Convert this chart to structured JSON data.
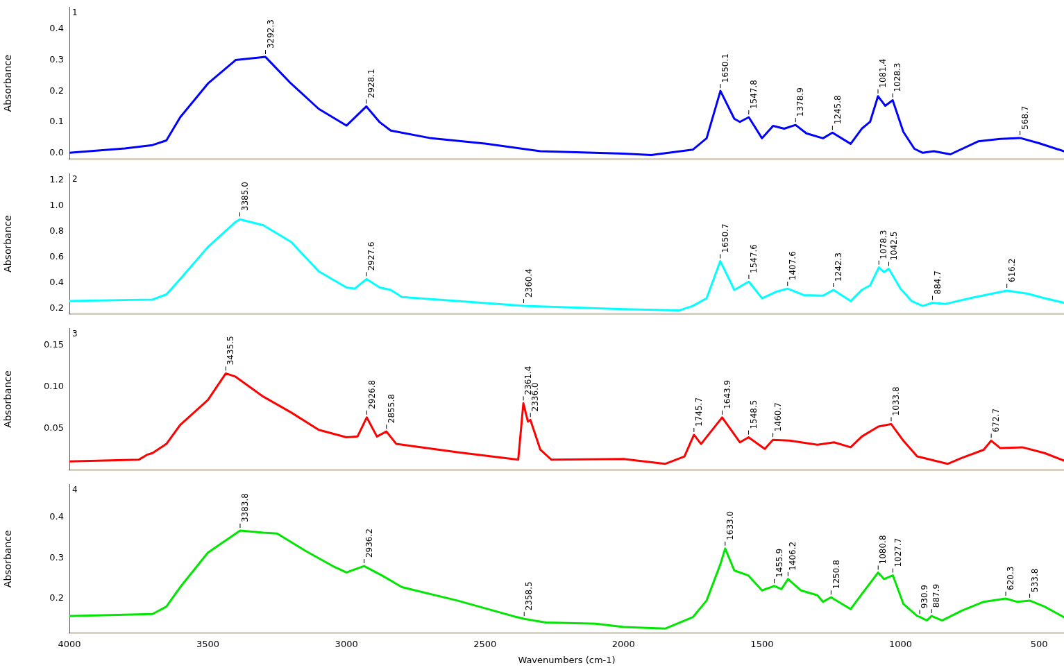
{
  "chart_data": [
    {
      "type": "line",
      "ylabel": "Absorbance",
      "annotations": [
        "1",
        {
          "text": "3292.3",
          "x": 3292.3,
          "y": 0.31
        },
        {
          "text": "2928.1",
          "x": 2928.1,
          "y": 0.15
        },
        {
          "text": "1650.1",
          "x": 1650.1,
          "y": 0.2
        },
        {
          "text": "1547.8",
          "x": 1547.8,
          "y": 0.115
        },
        {
          "text": "1378.9",
          "x": 1378.9,
          "y": 0.09
        },
        {
          "text": "1245.8",
          "x": 1245.8,
          "y": 0.065
        },
        {
          "text": "1081.4",
          "x": 1081.4,
          "y": 0.183
        },
        {
          "text": "1028.3",
          "x": 1028.3,
          "y": 0.17
        },
        {
          "text": "568.7",
          "x": 568.7,
          "y": 0.048
        }
      ],
      "x": [
        4000,
        3800,
        3700,
        3650,
        3600,
        3500,
        3400,
        3292.3,
        3200,
        3100,
        3000,
        2928.1,
        2880,
        2840,
        2700,
        2500,
        2300,
        2000,
        1900,
        1750,
        1700,
        1650.1,
        1600,
        1580,
        1547.8,
        1500,
        1460,
        1420,
        1378.9,
        1340,
        1280,
        1245.8,
        1180,
        1140,
        1110,
        1081.4,
        1055,
        1028.3,
        990,
        950,
        920,
        880,
        820,
        720,
        640,
        568.7,
        500,
        410
      ],
      "values": [
        0.0,
        0.014,
        0.025,
        0.04,
        0.115,
        0.224,
        0.3,
        0.31,
        0.224,
        0.142,
        0.088,
        0.15,
        0.099,
        0.072,
        0.048,
        0.03,
        0.005,
        -0.003,
        -0.007,
        0.01,
        0.047,
        0.2,
        0.11,
        0.1,
        0.115,
        0.047,
        0.087,
        0.078,
        0.09,
        0.063,
        0.047,
        0.065,
        0.029,
        0.078,
        0.1,
        0.183,
        0.152,
        0.17,
        0.068,
        0.013,
        0.0,
        0.005,
        -0.005,
        0.037,
        0.045,
        0.048,
        0.031,
        0.005
      ],
      "color": "#0000ff",
      "xlim": [
        4000,
        410
      ],
      "ylim": [
        -0.02,
        0.47
      ],
      "yticks": [
        {
          "value": 0,
          "label": "0.0"
        },
        0.1,
        0.2,
        0.3,
        0.4
      ],
      "tick_labels": "y",
      "marker": "none",
      "line_style": "solid",
      "legend": false
    },
    {
      "type": "line",
      "ylabel": "Absorbance",
      "annotations": [
        "2",
        {
          "text": "3385.0",
          "x": 3385.0,
          "y": 0.896
        },
        {
          "text": "2927.6",
          "x": 2927.6,
          "y": 0.43
        },
        {
          "text": "2360.4",
          "x": 2360.4,
          "y": 0.22
        },
        {
          "text": "1650.7",
          "x": 1650.7,
          "y": 0.57
        },
        {
          "text": "1547.6",
          "x": 1547.6,
          "y": 0.41
        },
        {
          "text": "1407.6",
          "x": 1407.6,
          "y": 0.355
        },
        {
          "text": "1242.3",
          "x": 1242.3,
          "y": 0.345
        },
        {
          "text": "1078.3",
          "x": 1078.3,
          "y": 0.52
        },
        {
          "text": "1042.5",
          "x": 1042.5,
          "y": 0.51
        },
        {
          "text": "884.7",
          "x": 884.7,
          "y": 0.245
        },
        {
          "text": "616.2",
          "x": 616.2,
          "y": 0.34
        }
      ],
      "x": [
        4000,
        3700,
        3650,
        3600,
        3500,
        3400,
        3385.0,
        3300,
        3200,
        3100,
        3000,
        2970,
        2927.6,
        2880,
        2840,
        2800,
        2600,
        2360.4,
        2000,
        1800,
        1750,
        1700,
        1650.7,
        1600,
        1547.6,
        1500,
        1450,
        1407.6,
        1350,
        1280,
        1242.3,
        1180,
        1140,
        1110,
        1078.3,
        1060,
        1042.5,
        1000,
        960,
        920,
        884.7,
        840,
        750,
        616.2,
        540,
        480,
        410
      ],
      "values": [
        0.258,
        0.27,
        0.31,
        0.43,
        0.68,
        0.876,
        0.896,
        0.85,
        0.72,
        0.49,
        0.364,
        0.355,
        0.43,
        0.364,
        0.345,
        0.29,
        0.258,
        0.22,
        0.195,
        0.185,
        0.22,
        0.28,
        0.57,
        0.345,
        0.41,
        0.28,
        0.33,
        0.355,
        0.305,
        0.3,
        0.345,
        0.258,
        0.345,
        0.38,
        0.52,
        0.485,
        0.51,
        0.355,
        0.258,
        0.22,
        0.245,
        0.235,
        0.28,
        0.34,
        0.315,
        0.28,
        0.245
      ],
      "color": "#00ffff",
      "xlim": [
        4000,
        410
      ],
      "ylim": [
        0.16,
        1.25
      ],
      "yticks": [
        0.2,
        0.4,
        0.6,
        0.8,
        {
          "value": 1,
          "label": "1.0"
        },
        1.2
      ],
      "tick_labels": "y",
      "marker": "none",
      "line_style": "solid",
      "legend": false
    },
    {
      "type": "line",
      "ylabel": "Absorbance",
      "annotations": [
        "3",
        {
          "text": "3435.5",
          "x": 3435.5,
          "y": 0.116
        },
        {
          "text": "2926.8",
          "x": 2926.8,
          "y": 0.063
        },
        {
          "text": "2855.8",
          "x": 2855.8,
          "y": 0.046
        },
        {
          "text": "2361.4",
          "x": 2361.4,
          "y": 0.08
        },
        {
          "text": "2336.0",
          "x": 2336.0,
          "y": 0.06
        },
        {
          "text": "1745.7",
          "x": 1745.7,
          "y": 0.042
        },
        {
          "text": "1643.9",
          "x": 1643.9,
          "y": 0.063
        },
        {
          "text": "1548.5",
          "x": 1548.5,
          "y": 0.039
        },
        {
          "text": "1460.7",
          "x": 1460.7,
          "y": 0.036
        },
        {
          "text": "1033.8",
          "x": 1033.8,
          "y": 0.055
        },
        {
          "text": "672.7",
          "x": 672.7,
          "y": 0.035
        }
      ],
      "x": [
        4000,
        3750,
        3720,
        3700,
        3650,
        3600,
        3500,
        3435.5,
        3400,
        3300,
        3200,
        3100,
        3000,
        2960,
        2926.8,
        2890,
        2855.8,
        2820,
        2600,
        2380,
        2361.4,
        2345,
        2336.0,
        2300,
        2260,
        2000,
        1850,
        1780,
        1745.7,
        1720,
        1643.9,
        1580,
        1548.5,
        1490,
        1460.7,
        1400,
        1300,
        1240,
        1180,
        1140,
        1080,
        1033.8,
        990,
        940,
        830,
        780,
        700,
        672.7,
        640,
        560,
        480,
        410
      ],
      "values": [
        0.01,
        0.012,
        0.018,
        0.02,
        0.031,
        0.054,
        0.084,
        0.116,
        0.112,
        0.088,
        0.069,
        0.048,
        0.039,
        0.04,
        0.063,
        0.04,
        0.046,
        0.031,
        0.021,
        0.012,
        0.08,
        0.058,
        0.06,
        0.024,
        0.012,
        0.013,
        0.007,
        0.016,
        0.042,
        0.031,
        0.063,
        0.033,
        0.039,
        0.025,
        0.036,
        0.035,
        0.03,
        0.033,
        0.027,
        0.04,
        0.052,
        0.055,
        0.035,
        0.016,
        0.007,
        0.014,
        0.024,
        0.035,
        0.026,
        0.027,
        0.02,
        0.011
      ],
      "color": "#ff0000",
      "xlim": [
        4000,
        410
      ],
      "ylim": [
        0,
        0.17
      ],
      "yticks": [
        0.05,
        {
          "value": 0.1,
          "label": "0.10"
        },
        0.15
      ],
      "tick_labels": "y",
      "marker": "none",
      "line_style": "solid",
      "legend": false
    },
    {
      "type": "line",
      "xlabel": "Wavenumbers (cm-1)",
      "ylabel": "Absorbance",
      "annotations": [
        "4",
        {
          "text": "3383.8",
          "x": 3383.8,
          "y": 0.367
        },
        {
          "text": "2936.2",
          "x": 2936.2,
          "y": 0.28
        },
        {
          "text": "2358.5",
          "x": 2358.5,
          "y": 0.15
        },
        {
          "text": "1633.0",
          "x": 1633.0,
          "y": 0.323
        },
        {
          "text": "1455.9",
          "x": 1455.9,
          "y": 0.231
        },
        {
          "text": "1406.2",
          "x": 1406.2,
          "y": 0.248
        },
        {
          "text": "1250.8",
          "x": 1250.8,
          "y": 0.203
        },
        {
          "text": "1080.8",
          "x": 1080.8,
          "y": 0.264
        },
        {
          "text": "1027.7",
          "x": 1027.7,
          "y": 0.257
        },
        {
          "text": "930.9",
          "x": 930.9,
          "y": 0.155
        },
        {
          "text": "887.9",
          "x": 887.9,
          "y": 0.157
        },
        {
          "text": "620.3",
          "x": 620.3,
          "y": 0.2
        },
        {
          "text": "533.8",
          "x": 533.8,
          "y": 0.195
        }
      ],
      "x": [
        4000,
        3700,
        3650,
        3600,
        3500,
        3383.8,
        3300,
        3250,
        3150,
        3050,
        3000,
        2936.2,
        2870,
        2800,
        2600,
        2400,
        2358.5,
        2280,
        2100,
        2000,
        1850,
        1750,
        1700,
        1650,
        1633.0,
        1600,
        1550,
        1500,
        1455.9,
        1430,
        1406.2,
        1360,
        1300,
        1280,
        1250.8,
        1180,
        1140,
        1080.8,
        1060,
        1027.7,
        990,
        940,
        930.9,
        905,
        887.9,
        850,
        780,
        700,
        620.3,
        580,
        533.8,
        480,
        410
      ],
      "values": [
        0.157,
        0.162,
        0.18,
        0.228,
        0.313,
        0.367,
        0.362,
        0.36,
        0.318,
        0.28,
        0.264,
        0.28,
        0.256,
        0.228,
        0.195,
        0.157,
        0.15,
        0.141,
        0.138,
        0.13,
        0.126,
        0.154,
        0.195,
        0.285,
        0.323,
        0.269,
        0.257,
        0.22,
        0.231,
        0.223,
        0.248,
        0.22,
        0.208,
        0.192,
        0.203,
        0.174,
        0.211,
        0.264,
        0.248,
        0.257,
        0.187,
        0.157,
        0.155,
        0.146,
        0.157,
        0.146,
        0.17,
        0.192,
        0.2,
        0.192,
        0.195,
        0.18,
        0.154
      ],
      "color": "#00e600",
      "xlim": [
        4000,
        410
      ],
      "ylim": [
        0.115,
        0.48
      ],
      "xticks": [
        4000,
        3500,
        3000,
        2500,
        2000,
        1500,
        1000,
        500
      ],
      "yticks": [
        0.2,
        0.3,
        0.4
      ],
      "marker": "none",
      "line_style": "solid",
      "legend": false
    }
  ]
}
